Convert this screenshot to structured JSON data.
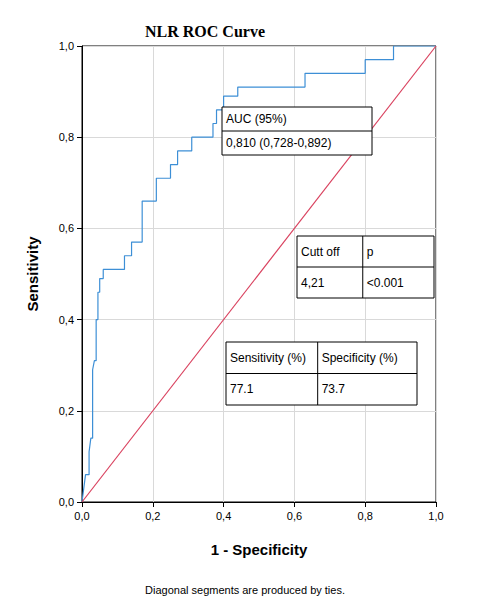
{
  "chart_data": {
    "type": "line",
    "title": "NLR ROC Curve",
    "x_label": "1 - Specificity",
    "y_label": "Sensitivity",
    "xlim": [
      0,
      1
    ],
    "ylim": [
      0,
      1
    ],
    "xticks": [
      {
        "value": 0,
        "label": "0,0"
      },
      {
        "value": 0.2,
        "label": "0,2"
      },
      {
        "value": 0.4,
        "label": "0,4"
      },
      {
        "value": 0.6,
        "label": "0,6"
      },
      {
        "value": 0.8,
        "label": "0,8"
      },
      {
        "value": 1,
        "label": "1,0"
      }
    ],
    "yticks": [
      {
        "value": 0,
        "label": "0,0"
      },
      {
        "value": 0.2,
        "label": "0,2"
      },
      {
        "value": 0.4,
        "label": "0,4"
      },
      {
        "value": 0.6,
        "label": "0,6"
      },
      {
        "value": 0.8,
        "label": "0,8"
      },
      {
        "value": 1,
        "label": "1,0"
      }
    ],
    "grid": true,
    "series": [
      {
        "color": "#3d8fd6",
        "x": [
          0,
          0.01,
          0.02,
          0.02,
          0.025,
          0.03,
          0.03,
          0.035,
          0.04,
          0.04,
          0.045,
          0.045,
          0.05,
          0.05,
          0.06,
          0.06,
          0.12,
          0.12,
          0.14,
          0.14,
          0.17,
          0.17,
          0.21,
          0.21,
          0.25,
          0.25,
          0.27,
          0.27,
          0.31,
          0.31,
          0.37,
          0.37,
          0.38,
          0.38,
          0.4,
          0.4,
          0.44,
          0.44,
          0.63,
          0.63,
          0.8,
          0.8,
          0.88,
          0.88,
          1.0
        ],
        "values": [
          0,
          0.06,
          0.06,
          0.11,
          0.14,
          0.14,
          0.29,
          0.31,
          0.31,
          0.4,
          0.4,
          0.46,
          0.46,
          0.49,
          0.49,
          0.51,
          0.51,
          0.54,
          0.54,
          0.57,
          0.57,
          0.66,
          0.66,
          0.71,
          0.71,
          0.74,
          0.74,
          0.77,
          0.77,
          0.8,
          0.8,
          0.83,
          0.83,
          0.86,
          0.86,
          0.89,
          0.89,
          0.91,
          0.91,
          0.94,
          0.94,
          0.97,
          0.97,
          1.0,
          1.0
        ]
      },
      {
        "color": "#d9415e",
        "x": [
          0,
          1
        ],
        "values": [
          0,
          1
        ]
      }
    ],
    "tables": [
      {
        "header": [
          "AUC (95%)"
        ],
        "rows": [
          [
            "0,810 (0,728-0,892)"
          ]
        ]
      },
      {
        "header": [
          "Cutt off",
          "p"
        ],
        "rows": [
          [
            "4,21",
            "<0.001"
          ]
        ]
      },
      {
        "header": [
          "Sensitivity (%)",
          "Specificity (%)"
        ],
        "rows": [
          [
            "77.1",
            "73.7"
          ]
        ]
      }
    ],
    "footnote": "Diagonal segments are produced by ties."
  }
}
